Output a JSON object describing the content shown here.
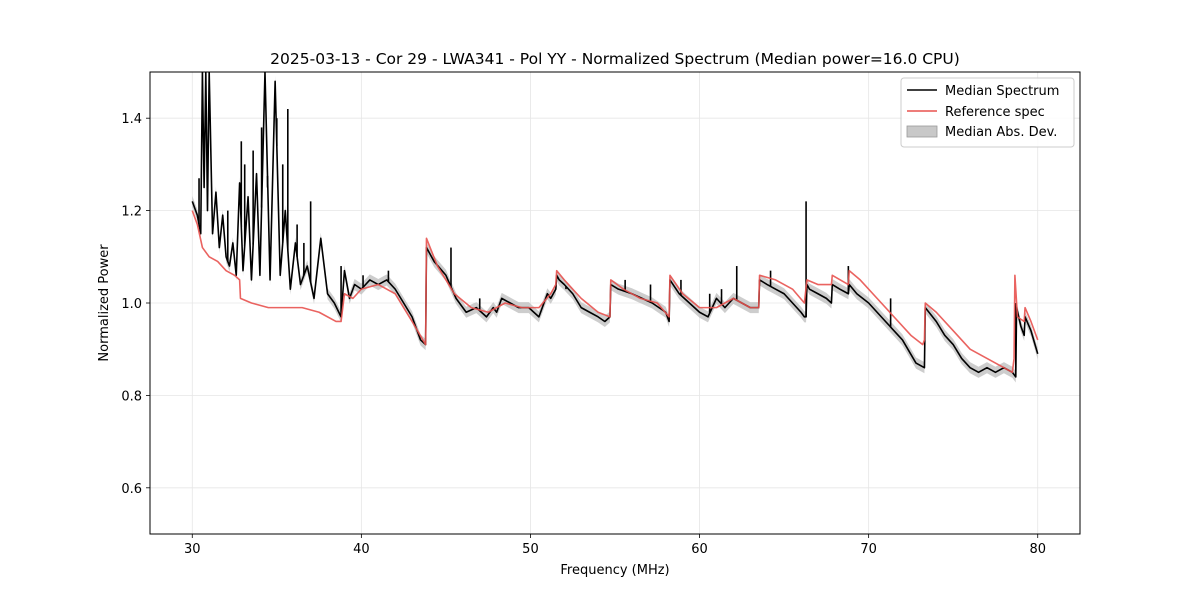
{
  "chart_data": {
    "type": "line",
    "title": "2025-03-13 - Cor 29 - LWA341 - Pol YY - Normalized Spectrum (Median power=16.0 CPU)",
    "xlabel": "Frequency (MHz)",
    "ylabel": "Normalized Power",
    "xlim": [
      27.5,
      82.5
    ],
    "ylim": [
      0.5,
      1.5
    ],
    "xticks": [
      30,
      40,
      50,
      60,
      70,
      80
    ],
    "yticks": [
      0.6,
      0.8,
      1.0,
      1.2,
      1.4
    ],
    "xtick_labels": [
      "30",
      "40",
      "50",
      "60",
      "70",
      "80"
    ],
    "ytick_labels": [
      "0.6",
      "0.8",
      "1.0",
      "1.2",
      "1.4"
    ],
    "grid": true,
    "legend_position": "top-right",
    "legend": [
      "Median Spectrum",
      "Reference spec",
      "Median Abs. Dev."
    ],
    "series": [
      {
        "name": "Median Spectrum",
        "color": "#000000",
        "x": [
          30.0,
          30.3,
          30.5,
          30.6,
          30.7,
          30.8,
          30.9,
          31.0,
          31.2,
          31.4,
          31.6,
          31.8,
          32.0,
          32.2,
          32.4,
          32.6,
          32.8,
          33.0,
          33.3,
          33.5,
          33.8,
          34.0,
          34.3,
          34.6,
          34.9,
          35.2,
          35.5,
          35.8,
          36.1,
          36.4,
          36.8,
          37.2,
          37.6,
          38.0,
          38.4,
          38.8,
          39.0,
          39.3,
          39.6,
          40.0,
          40.5,
          41.0,
          41.5,
          42.0,
          42.5,
          43.0,
          43.5,
          43.8,
          43.85,
          44.3,
          45.0,
          45.6,
          46.2,
          46.8,
          47.4,
          47.8,
          48.0,
          48.3,
          48.8,
          49.3,
          49.9,
          50.5,
          51.0,
          51.2,
          51.5,
          51.55,
          51.7,
          52.0,
          52.5,
          53.0,
          53.5,
          54.0,
          54.4,
          54.7,
          54.75,
          55.2,
          56.0,
          56.6,
          57.2,
          58.0,
          58.2,
          58.25,
          58.8,
          59.4,
          60.0,
          60.5,
          61.0,
          61.5,
          62.0,
          62.5,
          63.0,
          63.5,
          63.55,
          64.0,
          64.5,
          65.0,
          65.5,
          66.0,
          66.2,
          66.3,
          66.35,
          66.5,
          67.0,
          67.5,
          67.8,
          67.85,
          68.3,
          68.8,
          68.85,
          69.3,
          70.0,
          71.0,
          72.0,
          72.8,
          73.3,
          73.35,
          74.0,
          74.5,
          75.0,
          75.5,
          76.0,
          76.5,
          77.0,
          77.5,
          78.0,
          78.5,
          78.7,
          78.75,
          79.0,
          79.2,
          79.25,
          79.6,
          80.0
        ],
        "values": [
          1.22,
          1.19,
          1.15,
          1.5,
          1.25,
          1.5,
          1.2,
          1.5,
          1.15,
          1.24,
          1.12,
          1.19,
          1.1,
          1.08,
          1.13,
          1.06,
          1.26,
          1.07,
          1.23,
          1.05,
          1.28,
          1.06,
          1.5,
          1.05,
          1.48,
          1.06,
          1.2,
          1.03,
          1.13,
          1.04,
          1.08,
          1.01,
          1.14,
          1.02,
          1.0,
          0.97,
          1.07,
          1.01,
          1.04,
          1.03,
          1.05,
          1.04,
          1.05,
          1.03,
          1.0,
          0.97,
          0.92,
          0.91,
          1.12,
          1.09,
          1.06,
          1.01,
          0.98,
          0.99,
          0.97,
          0.99,
          0.98,
          1.01,
          1.0,
          0.99,
          0.99,
          0.97,
          1.02,
          1.01,
          1.03,
          1.06,
          1.05,
          1.04,
          1.02,
          0.99,
          0.98,
          0.97,
          0.96,
          0.97,
          1.04,
          1.03,
          1.02,
          1.01,
          1.0,
          0.98,
          0.96,
          1.05,
          1.02,
          1.0,
          0.98,
          0.97,
          1.01,
          0.99,
          1.01,
          1.0,
          0.99,
          0.99,
          1.05,
          1.04,
          1.03,
          1.02,
          1.0,
          0.98,
          0.97,
          0.97,
          1.04,
          1.03,
          1.02,
          1.01,
          1.0,
          1.04,
          1.03,
          1.02,
          1.04,
          1.02,
          1.0,
          0.96,
          0.92,
          0.87,
          0.86,
          0.99,
          0.96,
          0.93,
          0.91,
          0.88,
          0.86,
          0.85,
          0.86,
          0.85,
          0.86,
          0.85,
          0.84,
          0.99,
          0.95,
          0.93,
          0.97,
          0.94,
          0.89
        ],
        "spikes": [
          [
            30.4,
            1.27
          ],
          [
            32.1,
            1.2
          ],
          [
            32.9,
            1.35
          ],
          [
            33.1,
            1.3
          ],
          [
            33.6,
            1.33
          ],
          [
            34.1,
            1.38
          ],
          [
            34.45,
            1.25
          ],
          [
            35.0,
            1.4
          ],
          [
            35.35,
            1.3
          ],
          [
            35.65,
            1.42
          ],
          [
            36.2,
            1.17
          ],
          [
            36.6,
            1.13
          ],
          [
            37.0,
            1.22
          ],
          [
            37.8,
            1.08
          ],
          [
            38.8,
            1.08
          ],
          [
            40.1,
            1.06
          ],
          [
            41.6,
            1.07
          ],
          [
            45.3,
            1.12
          ],
          [
            47.0,
            1.01
          ],
          [
            52.1,
            1.03
          ],
          [
            55.6,
            1.05
          ],
          [
            57.1,
            1.04
          ],
          [
            58.9,
            1.05
          ],
          [
            60.6,
            1.02
          ],
          [
            61.3,
            1.03
          ],
          [
            62.2,
            1.08
          ],
          [
            64.2,
            1.07
          ],
          [
            66.3,
            1.22
          ],
          [
            68.8,
            1.08
          ],
          [
            71.3,
            1.01
          ],
          [
            78.7,
            1.0
          ]
        ]
      },
      {
        "name": "Reference spec",
        "color": "#e8524f",
        "x": [
          30.0,
          30.3,
          30.6,
          31.0,
          31.5,
          32.0,
          32.5,
          32.8,
          32.85,
          33.5,
          34.5,
          35.5,
          36.5,
          37.5,
          38.5,
          38.8,
          39.0,
          39.5,
          40.0,
          41.0,
          42.0,
          43.0,
          43.8,
          43.85,
          44.5,
          45.5,
          46.5,
          47.5,
          48.5,
          49.5,
          50.5,
          51.2,
          51.5,
          51.55,
          52.0,
          53.0,
          54.0,
          54.7,
          54.75,
          55.5,
          56.5,
          57.5,
          58.2,
          58.25,
          59.0,
          60.0,
          61.0,
          62.0,
          63.0,
          63.5,
          63.55,
          64.5,
          65.5,
          66.2,
          66.35,
          67.0,
          67.8,
          67.85,
          68.8,
          68.85,
          69.5,
          70.5,
          71.5,
          72.5,
          73.2,
          73.3,
          73.35,
          74.0,
          75.0,
          76.0,
          77.0,
          77.5,
          78.0,
          78.5,
          78.6,
          78.65,
          78.8,
          79.2,
          79.25,
          79.6,
          80.0
        ],
        "values": [
          1.2,
          1.17,
          1.12,
          1.1,
          1.09,
          1.07,
          1.06,
          1.05,
          1.01,
          1.0,
          0.99,
          0.99,
          0.99,
          0.98,
          0.96,
          0.96,
          1.02,
          1.01,
          1.03,
          1.04,
          1.02,
          0.96,
          0.91,
          1.14,
          1.08,
          1.02,
          0.99,
          0.98,
          1.0,
          0.99,
          0.99,
          1.02,
          1.04,
          1.07,
          1.05,
          1.01,
          0.98,
          0.97,
          1.05,
          1.03,
          1.01,
          1.0,
          0.97,
          1.06,
          1.02,
          0.99,
          0.99,
          1.01,
          0.99,
          0.99,
          1.06,
          1.05,
          1.03,
          1.0,
          1.05,
          1.04,
          1.04,
          1.06,
          1.04,
          1.07,
          1.05,
          1.01,
          0.97,
          0.93,
          0.91,
          0.92,
          1.0,
          0.98,
          0.94,
          0.9,
          0.88,
          0.87,
          0.86,
          0.85,
          0.88,
          1.06,
          0.97,
          0.96,
          0.99,
          0.96,
          0.92
        ]
      },
      {
        "name": "Median Abs. Dev.",
        "color": "#c0c0c0",
        "band_halfwidth": 0.012
      }
    ]
  }
}
